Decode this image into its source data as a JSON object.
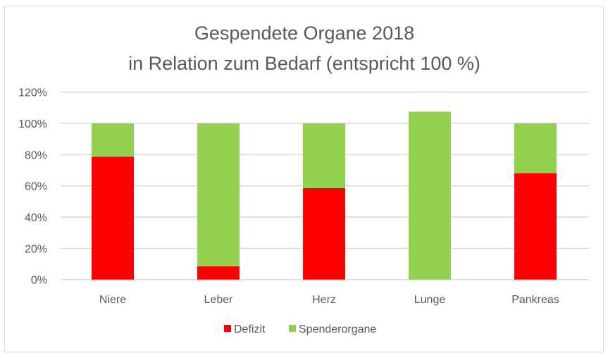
{
  "chart_data": {
    "type": "bar",
    "stacked": true,
    "title": "Gespendete Organe 2018",
    "subtitle": "in Relation zum Bedarf (entspricht 100 %)",
    "xlabel": "",
    "ylabel": "",
    "categories": [
      "Niere",
      "Leber",
      "Herz",
      "Lunge",
      "Pankreas"
    ],
    "series": [
      {
        "name": "Defizit",
        "color": "#ff0000",
        "values": [
          78.7,
          8.5,
          58.6,
          0,
          68.1
        ]
      },
      {
        "name": "Spenderorgane",
        "color": "#92d050",
        "values": [
          21.3,
          91.5,
          41.4,
          107.5,
          31.9
        ]
      }
    ],
    "ylim": [
      0,
      120
    ],
    "yticks": [
      0,
      20,
      40,
      60,
      80,
      100,
      120
    ],
    "ytick_labels": [
      "0%",
      "20%",
      "40%",
      "60%",
      "80%",
      "100%",
      "120%"
    ],
    "grid": true,
    "legend_position": "bottom"
  }
}
